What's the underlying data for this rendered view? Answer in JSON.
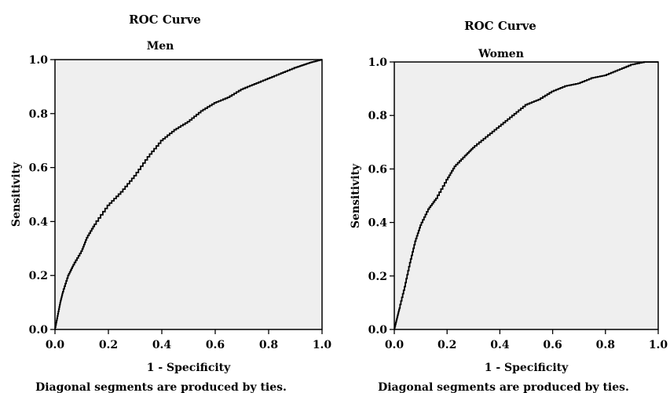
{
  "chart_data": [
    {
      "type": "line",
      "title": "ROC Curve",
      "subtitle": "Men",
      "xlabel": "1 - Specificity",
      "ylabel": "Sensitivity",
      "footnote": "Diagonal segments are produced by ties.",
      "xlim": [
        0,
        1
      ],
      "ylim": [
        0,
        1
      ],
      "xticks": [
        "0.0",
        "0.2",
        "0.4",
        "0.6",
        "0.8",
        "1.0"
      ],
      "yticks": [
        "0.0",
        "0.2",
        "0.4",
        "0.6",
        "0.8",
        "1.0"
      ],
      "grid": false,
      "plot_background": "#efefef",
      "series": [
        {
          "x": [
            0,
            0.01,
            0.02,
            0.03,
            0.05,
            0.07,
            0.1,
            0.12,
            0.15,
            0.2,
            0.25,
            0.3,
            0.35,
            0.4,
            0.45,
            0.5,
            0.55,
            0.6,
            0.65,
            0.7,
            0.75,
            0.8,
            0.85,
            0.9,
            0.93,
            0.96,
            1.0
          ],
          "y": [
            0,
            0.05,
            0.1,
            0.14,
            0.2,
            0.24,
            0.29,
            0.34,
            0.39,
            0.46,
            0.51,
            0.57,
            0.64,
            0.7,
            0.74,
            0.77,
            0.81,
            0.84,
            0.86,
            0.89,
            0.91,
            0.93,
            0.95,
            0.97,
            0.98,
            0.99,
            1.0
          ]
        }
      ]
    },
    {
      "type": "line",
      "title": "ROC Curve",
      "subtitle": "Women",
      "xlabel": "1 - Specificity",
      "ylabel": "Sensitivity",
      "footnote": "Diagonal segments are produced by ties.",
      "xlim": [
        0,
        1
      ],
      "ylim": [
        0,
        1
      ],
      "xticks": [
        "0.0",
        "0.2",
        "0.4",
        "0.6",
        "0.8",
        "1.0"
      ],
      "yticks": [
        "0.0",
        "0.2",
        "0.4",
        "0.6",
        "0.8",
        "1.0"
      ],
      "grid": false,
      "plot_background": "#efefef",
      "series": [
        {
          "x": [
            0,
            0.01,
            0.02,
            0.04,
            0.06,
            0.08,
            0.1,
            0.13,
            0.16,
            0.2,
            0.23,
            0.27,
            0.3,
            0.35,
            0.4,
            0.45,
            0.5,
            0.55,
            0.6,
            0.65,
            0.7,
            0.75,
            0.8,
            0.85,
            0.9,
            0.95,
            1.0
          ],
          "y": [
            0,
            0.04,
            0.08,
            0.16,
            0.25,
            0.33,
            0.39,
            0.45,
            0.49,
            0.56,
            0.61,
            0.65,
            0.68,
            0.72,
            0.76,
            0.8,
            0.84,
            0.86,
            0.89,
            0.91,
            0.92,
            0.94,
            0.95,
            0.97,
            0.99,
            1.0,
            1.0
          ]
        }
      ]
    }
  ]
}
